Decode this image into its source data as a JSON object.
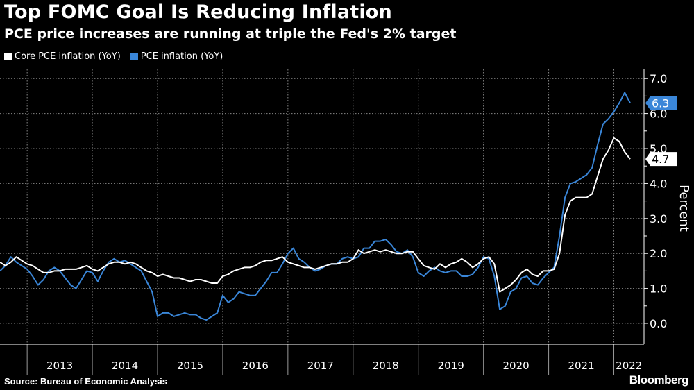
{
  "title": "Top FOMC Goal Is Reducing Inflation",
  "subtitle": "PCE price increases are running at triple the Fed's 2% target",
  "source": "Source: Bureau of Economic Analysis",
  "brand": "Bloomberg",
  "chart_data": {
    "type": "line",
    "title": "Top FOMC Goal Is Reducing Inflation",
    "subtitle": "PCE price increases are running at triple the Fed's 2% target",
    "ylabel": "Percent",
    "xlabel": "",
    "ylim": [
      -0.6,
      7.3
    ],
    "yticks": [
      "0.0",
      "1.0",
      "2.0",
      "3.0",
      "4.0",
      "5.0",
      "6.0",
      "7.0"
    ],
    "x_start": "2012-08",
    "x_end": "2022-04",
    "frequency": "monthly",
    "xticks": [
      "2013",
      "2014",
      "2015",
      "2016",
      "2017",
      "2018",
      "2019",
      "2020",
      "2021",
      "2022"
    ],
    "grid": true,
    "legend_position": "top-left",
    "series": [
      {
        "name": "Core PCE inflation (YoY)",
        "color": "#ffffff",
        "last_label": "4.7",
        "values": [
          1.75,
          1.65,
          1.75,
          1.9,
          1.8,
          1.7,
          1.65,
          1.55,
          1.45,
          1.45,
          1.5,
          1.5,
          1.55,
          1.55,
          1.55,
          1.6,
          1.65,
          1.55,
          1.5,
          1.6,
          1.7,
          1.75,
          1.75,
          1.7,
          1.75,
          1.7,
          1.6,
          1.5,
          1.45,
          1.35,
          1.4,
          1.35,
          1.3,
          1.3,
          1.25,
          1.2,
          1.25,
          1.25,
          1.2,
          1.15,
          1.15,
          1.35,
          1.4,
          1.5,
          1.55,
          1.6,
          1.6,
          1.65,
          1.75,
          1.8,
          1.8,
          1.85,
          1.9,
          1.75,
          1.7,
          1.65,
          1.6,
          1.6,
          1.55,
          1.6,
          1.65,
          1.7,
          1.7,
          1.75,
          1.75,
          1.85,
          2.1,
          2.0,
          2.05,
          2.1,
          2.05,
          2.1,
          2.05,
          2.0,
          2.0,
          2.05,
          2.05,
          1.85,
          1.65,
          1.6,
          1.55,
          1.7,
          1.6,
          1.7,
          1.75,
          1.85,
          1.75,
          1.6,
          1.7,
          1.85,
          1.9,
          1.7,
          0.9,
          1.0,
          1.1,
          1.25,
          1.45,
          1.55,
          1.4,
          1.35,
          1.5,
          1.5,
          1.55,
          2.0,
          3.1,
          3.5,
          3.6,
          3.6,
          3.6,
          3.7,
          4.2,
          4.7,
          4.95,
          5.3,
          5.2,
          4.9,
          4.7
        ]
      },
      {
        "name": "PCE inflation (YoY)",
        "color": "#3a86d8",
        "last_label": "6.3",
        "values": [
          1.5,
          1.65,
          1.9,
          1.75,
          1.65,
          1.55,
          1.35,
          1.1,
          1.25,
          1.5,
          1.6,
          1.5,
          1.3,
          1.1,
          1.0,
          1.25,
          1.5,
          1.45,
          1.2,
          1.5,
          1.75,
          1.85,
          1.75,
          1.8,
          1.7,
          1.6,
          1.5,
          1.2,
          0.9,
          0.2,
          0.3,
          0.3,
          0.2,
          0.25,
          0.3,
          0.25,
          0.25,
          0.15,
          0.1,
          0.2,
          0.3,
          0.8,
          0.6,
          0.7,
          0.9,
          0.85,
          0.8,
          0.8,
          1.0,
          1.2,
          1.45,
          1.45,
          1.7,
          2.0,
          2.15,
          1.85,
          1.75,
          1.6,
          1.5,
          1.55,
          1.65,
          1.7,
          1.7,
          1.85,
          1.9,
          1.85,
          1.9,
          2.15,
          2.15,
          2.35,
          2.35,
          2.4,
          2.25,
          2.05,
          2.0,
          2.1,
          1.9,
          1.45,
          1.35,
          1.5,
          1.6,
          1.5,
          1.45,
          1.5,
          1.5,
          1.35,
          1.35,
          1.4,
          1.6,
          1.9,
          1.85,
          1.35,
          0.4,
          0.5,
          0.9,
          1.0,
          1.3,
          1.35,
          1.15,
          1.1,
          1.3,
          1.45,
          1.6,
          2.5,
          3.6,
          4.0,
          4.05,
          4.15,
          4.25,
          4.45,
          5.1,
          5.7,
          5.85,
          6.05,
          6.3,
          6.6,
          6.3
        ]
      }
    ]
  }
}
